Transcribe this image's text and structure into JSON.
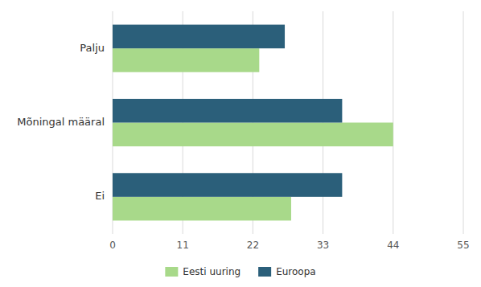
{
  "chart_data": {
    "type": "bar",
    "orientation": "horizontal",
    "categories": [
      "Palju",
      "Mõningal määral",
      "Ei"
    ],
    "series": [
      {
        "name": "Eesti uuring",
        "color": "#a8d98a",
        "values": [
          23,
          44,
          28
        ]
      },
      {
        "name": "Euroopa",
        "color": "#2b5f7a",
        "values": [
          27,
          36,
          36
        ]
      }
    ],
    "xlim": [
      0,
      55
    ],
    "xticks": [
      0,
      11,
      22,
      33,
      44,
      55
    ],
    "grid": true,
    "legend": "bottom"
  }
}
